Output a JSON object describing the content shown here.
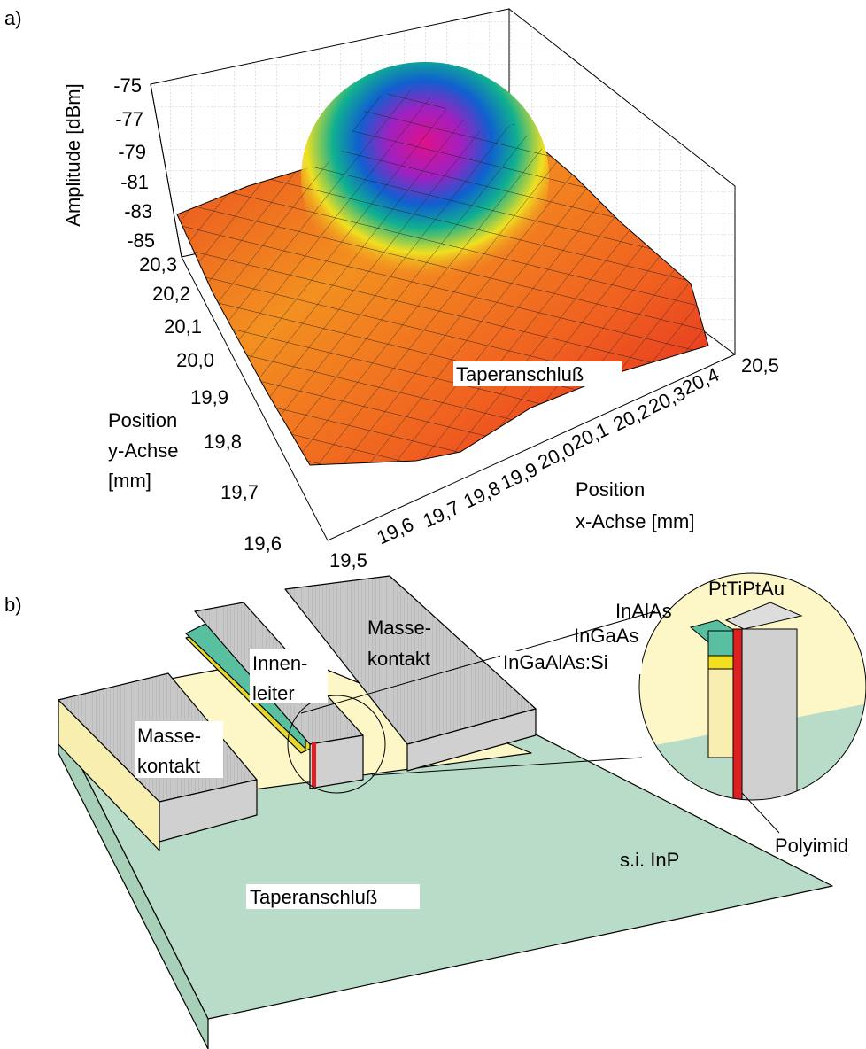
{
  "panel_a": {
    "label": "a)",
    "z_axis_label": "Amplitude [dBm]",
    "z_ticks": [
      "-75",
      "-77",
      "-79",
      "-81",
      "-83",
      "-85"
    ],
    "y_axis_label": [
      "Position",
      "y-Achse",
      "[mm]"
    ],
    "y_ticks": [
      "20,3",
      "20,2",
      "20,1",
      "20,0",
      "19,9",
      "19,8",
      "19,7",
      "19,6"
    ],
    "x_axis_label": [
      "Position",
      "x-Achse [mm]"
    ],
    "x_ticks": [
      "19,5",
      "19,6",
      "19,7",
      "19,8",
      "19,9",
      "20,0",
      "20,1",
      "20,2",
      "20,3",
      "20,4",
      "20,5"
    ],
    "annotation": "Taperanschluß"
  },
  "panel_b": {
    "label": "b)",
    "labels": {
      "ptti": "PtTiPtAu",
      "inalas": "InAlAs",
      "ingaas": "InGaAs",
      "ingaalas": "InGaAlAs:Si",
      "masse_right": [
        "Masse-",
        "kontakt"
      ],
      "innen": [
        "Innen-",
        "leiter"
      ],
      "masse_left": [
        "Masse-",
        "kontakt"
      ],
      "taper": "Taperanschluß",
      "inp": "s.i. InP",
      "polyimid": "Polyimid"
    }
  }
}
